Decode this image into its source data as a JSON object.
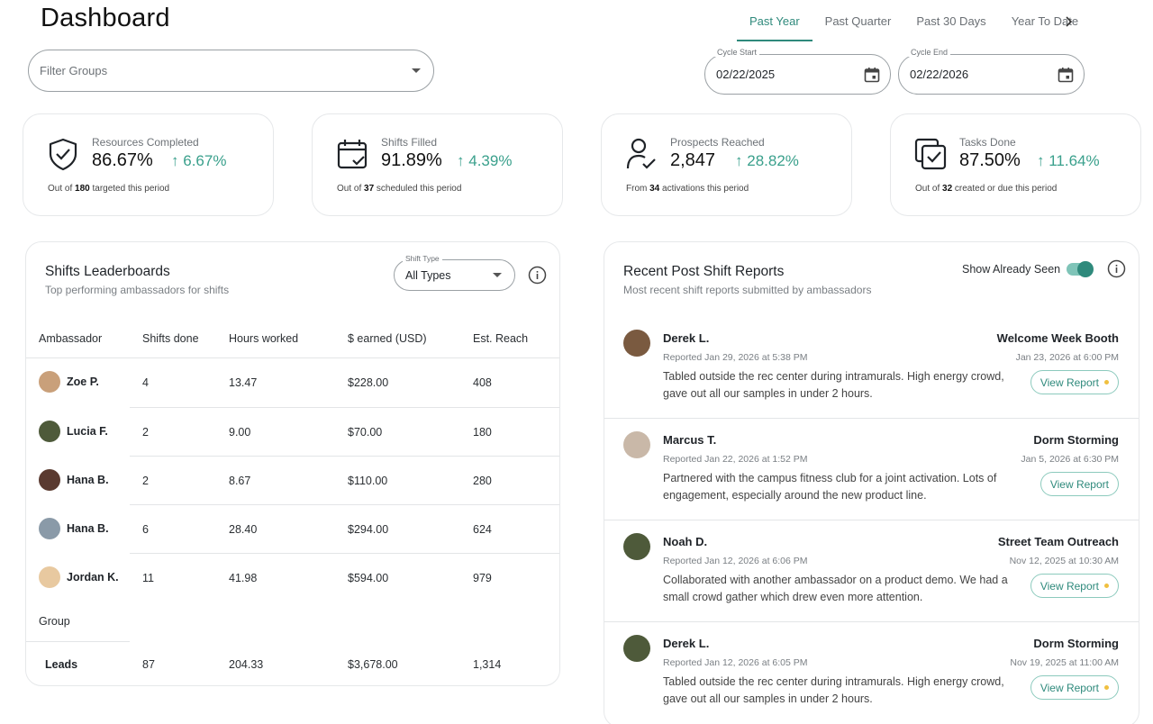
{
  "header": {
    "title": "Dashboard",
    "tabs": [
      {
        "label": "Past Year",
        "active": true
      },
      {
        "label": "Past Quarter",
        "active": false
      },
      {
        "label": "Past 30 Days",
        "active": false
      },
      {
        "label": "Year To Date",
        "active": false
      }
    ],
    "tabs_more_icon": "chevron-right-icon"
  },
  "filters": {
    "groups_placeholder": "Filter Groups",
    "cycle_start_label": "Cycle Start",
    "cycle_start_value": "02/22/2025",
    "cycle_end_label": "Cycle End",
    "cycle_end_value": "02/22/2026",
    "calendar_icon": "calendar-icon"
  },
  "stats": [
    {
      "label": "Resources Completed",
      "value": "86.67%",
      "change": "6.67%",
      "note_pre": "Out of ",
      "note_num": "180",
      "note_post": " targeted this period",
      "icon": "shield-check-icon"
    },
    {
      "label": "Shifts Filled",
      "value": "91.89%",
      "change": "4.39%",
      "note_pre": "Out of ",
      "note_num": "37",
      "note_post": " scheduled this period",
      "icon": "calendar-check-icon"
    },
    {
      "label": "Prospects Reached",
      "value": "2,847",
      "change": "28.82%",
      "note_pre": "From ",
      "note_num": "34",
      "note_post": " activations this period",
      "icon": "user-check-icon"
    },
    {
      "label": "Tasks Done",
      "value": "87.50%",
      "change": "11.64%",
      "note_pre": "Out of ",
      "note_num": "32",
      "note_post": " created or due this period",
      "icon": "copy-check-icon"
    }
  ],
  "leaderboard": {
    "title": "Shifts Leaderboards",
    "subtitle": "Top performing ambassadors for shifts",
    "shift_type_label": "Shift Type",
    "shift_type_value": "All Types",
    "columns": [
      "Ambassador",
      "Shifts done",
      "Hours worked",
      "$ earned (USD)",
      "Est. Reach"
    ],
    "rows": [
      {
        "name": "Zoe P.",
        "shifts": "4",
        "hours": "13.47",
        "earned": "$228.00",
        "reach": "408",
        "avatar_color": "#c9a07a"
      },
      {
        "name": "Lucia F.",
        "shifts": "2",
        "hours": "9.00",
        "earned": "$70.00",
        "reach": "180",
        "avatar_color": "#4e5a3a"
      },
      {
        "name": "Hana B.",
        "shifts": "2",
        "hours": "8.67",
        "earned": "$110.00",
        "reach": "280",
        "avatar_color": "#5a3a30"
      },
      {
        "name": "Hana B.",
        "shifts": "6",
        "hours": "28.40",
        "earned": "$294.00",
        "reach": "624",
        "avatar_color": "#8a9aa8"
      },
      {
        "name": "Jordan K.",
        "shifts": "11",
        "hours": "41.98",
        "earned": "$594.00",
        "reach": "979",
        "avatar_color": "#e8c9a0"
      }
    ],
    "group_label": "Group",
    "leads": {
      "name": "Leads",
      "shifts": "87",
      "hours": "204.33",
      "earned": "$3,678.00",
      "reach": "1,314"
    }
  },
  "reports": {
    "title": "Recent Post Shift Reports",
    "subtitle": "Most recent shift reports submitted by ambassadors",
    "toggle_label": "Show Already Seen",
    "toggle_on": true,
    "view_label": "View Report",
    "items": [
      {
        "name": "Derek L.",
        "reported": "Reported Jan 29, 2026 at 5:38 PM",
        "text": "Tabled outside the rec center during intramurals. High energy crowd, gave out all our samples in under 2 hours.",
        "event": "Welcome Week Booth",
        "event_date": "Jan 23, 2026 at 6:00 PM",
        "unseen": true,
        "avatar_color": "#7a5a40"
      },
      {
        "name": "Marcus T.",
        "reported": "Reported Jan 22, 2026 at 1:52 PM",
        "text": "Partnered with the campus fitness club for a joint activation. Lots of engagement, especially around the new product line.",
        "event": "Dorm Storming",
        "event_date": "Jan 5, 2026 at 6:30 PM",
        "unseen": false,
        "avatar_color": "#c9b8a8"
      },
      {
        "name": "Noah D.",
        "reported": "Reported Jan 12, 2026 at 6:06 PM",
        "text": "Collaborated with another ambassador on a product demo. We had a small crowd gather which drew even more attention.",
        "event": "Street Team Outreach",
        "event_date": "Nov 12, 2025 at 10:30 AM",
        "unseen": true,
        "avatar_color": "#4e5a3a"
      },
      {
        "name": "Derek L.",
        "reported": "Reported Jan 12, 2026 at 6:05 PM",
        "text": "Tabled outside the rec center during intramurals. High energy crowd, gave out all our samples in under 2 hours.",
        "event": "Dorm Storming",
        "event_date": "Nov 19, 2025 at 11:00 AM",
        "unseen": true,
        "avatar_color": "#4e5a3a"
      }
    ]
  },
  "colors": {
    "accent": "#2f8a7c",
    "positive": "#3aa08c",
    "unseen_dot": "#f0c040",
    "border": "#e6e8ea"
  }
}
